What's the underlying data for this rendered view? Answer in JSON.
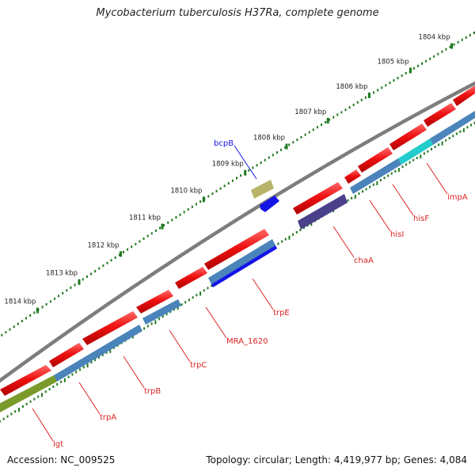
{
  "title": "Mycobacterium tuberculosis H37Ra, complete genome",
  "footer": {
    "accession": "Accession: NC_009525",
    "summary": "Topology: circular; Length: 4,419,977 bp; Genes: 4,084"
  },
  "colors": {
    "backbone": "#7d7d7d",
    "tick_dots": "#1f7a1f",
    "forward_gene": "#ee1111",
    "reverse_cds": "#4a84bb",
    "label_line": "#dd2222"
  },
  "scale": {
    "unit": "kbp",
    "ticks": [
      "1804 kbp",
      "1805 kbp",
      "1806 kbp",
      "1807 kbp",
      "1808 kbp",
      "1809 kbp",
      "1810 kbp",
      "1811 kbp",
      "1812 kbp",
      "1813 kbp",
      "1814 kbp"
    ]
  },
  "features": [
    {
      "label": "lgt",
      "strand": "reverse",
      "color": "#7a9a2a"
    },
    {
      "label": "trpA",
      "strand": "reverse",
      "color": "#4a84bb"
    },
    {
      "label": "trpB",
      "strand": "reverse",
      "color": "#4a84bb"
    },
    {
      "label": "trpC",
      "strand": "reverse",
      "color": "#4a84bb"
    },
    {
      "label": "MRA_1620",
      "strand": "reverse",
      "color": "#4a84bb"
    },
    {
      "label": "trpE",
      "strand": "reverse",
      "color": "#1414e6"
    },
    {
      "label": "chaA",
      "strand": "reverse",
      "color": "#4a3f8a"
    },
    {
      "label": "hisI",
      "strand": "reverse",
      "color": "#4a84bb"
    },
    {
      "label": "hisF",
      "strand": "reverse",
      "color": "#4a84bb"
    },
    {
      "label": "impA",
      "strand": "reverse",
      "color": "#22cccc"
    },
    {
      "label": "bcpB",
      "strand": "forward",
      "color": "#1414e6"
    }
  ]
}
